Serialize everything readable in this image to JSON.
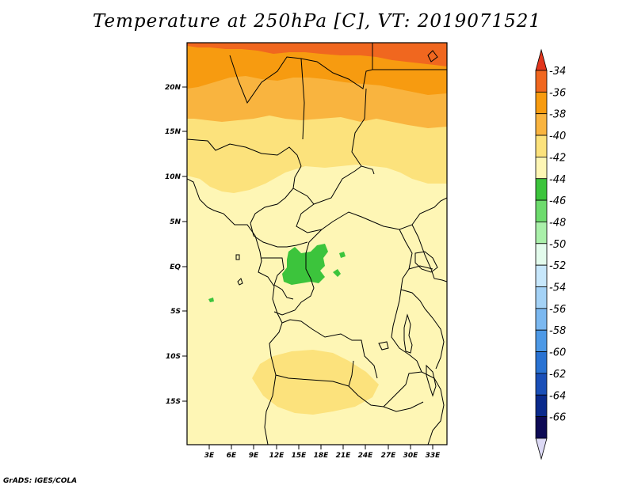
{
  "title": "Temperature at 250hPa [C], VT: 2019071521",
  "credit": "GrADS: IGES/COLA",
  "map": {
    "lat_labels": [
      "20N",
      "15N",
      "10N",
      "5N",
      "EQ",
      "5S",
      "10S",
      "15S"
    ],
    "lon_labels": [
      "3E",
      "6E",
      "9E",
      "12E",
      "15E",
      "18E",
      "21E",
      "24E",
      "27E",
      "30E",
      "33E"
    ],
    "colors": {
      "c34": "#f0671f",
      "c36": "#f79b10",
      "c38": "#f9b43f",
      "c40": "#fce27c",
      "c42": "#fef6b5",
      "c44": "#3cc43c",
      "border": "#000000"
    }
  },
  "colorbar": {
    "labels": [
      "-34",
      "-36",
      "-38",
      "-40",
      "-42",
      "-44",
      "-46",
      "-48",
      "-50",
      "-52",
      "-54",
      "-56",
      "-58",
      "-60",
      "-62",
      "-64",
      "-66"
    ],
    "colors": [
      "#e2361d",
      "#f0671f",
      "#f79b10",
      "#f9b43f",
      "#fce27c",
      "#fef6b5",
      "#3cc43c",
      "#6ddb6d",
      "#aaf0aa",
      "#e3fbec",
      "#c7e7fb",
      "#a4d2f6",
      "#7bb8f0",
      "#4d99e6",
      "#2a73d3",
      "#1a4fb8",
      "#0a2a8c",
      "#0d0a55",
      "#dcd9f5"
    ]
  }
}
